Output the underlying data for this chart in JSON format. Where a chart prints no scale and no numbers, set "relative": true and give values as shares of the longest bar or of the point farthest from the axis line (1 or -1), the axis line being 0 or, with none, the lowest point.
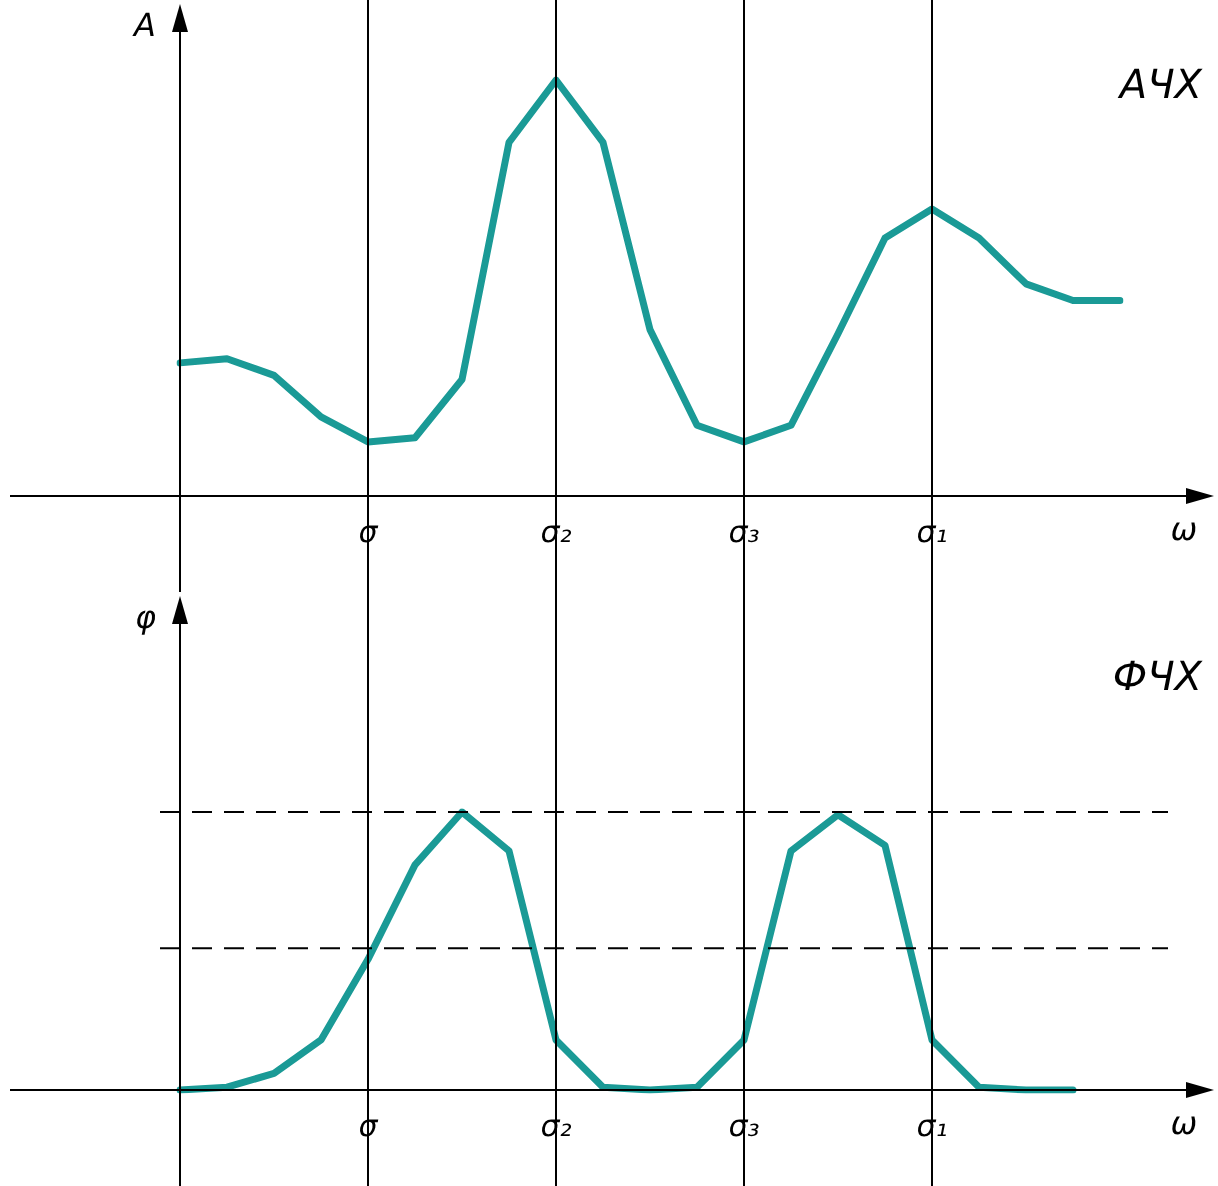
{
  "chart_data": [
    {
      "type": "line",
      "title": "АЧХ",
      "ylabel": "А",
      "xlabel": "ω",
      "relative": true,
      "grid": "x",
      "legend": false,
      "marker": "none",
      "line_style": "solid",
      "categories": [
        null,
        null,
        null,
        null,
        "σ",
        null,
        null,
        null,
        "σ₂",
        null,
        null,
        null,
        "σ₃",
        null,
        null,
        null,
        "σ₁",
        null,
        null,
        null,
        null
      ],
      "series": [
        {
          "color": "#1a9a96",
          "values": [
            0.32,
            0.33,
            0.29,
            0.19,
            0.13,
            0.14,
            0.28,
            0.85,
            1,
            0.85,
            0.4,
            0.17,
            0.13,
            0.17,
            0.39,
            0.62,
            0.69,
            0.62,
            0.51,
            0.47,
            0.47
          ]
        }
      ]
    },
    {
      "type": "line",
      "title": "ФЧХ",
      "ylabel": "φ",
      "xlabel": "ω",
      "relative": true,
      "grid": "x",
      "legend": false,
      "marker": "none",
      "line_style": "solid",
      "categories": [
        null,
        null,
        null,
        null,
        "σ",
        null,
        null,
        null,
        "σ₂",
        null,
        null,
        null,
        "σ₃",
        null,
        null,
        null,
        "σ₁",
        null,
        null,
        null,
        null
      ],
      "series": [
        {
          "color": "#1a9a96",
          "values": [
            0,
            0.01,
            0.06,
            0.18,
            0.47,
            0.81,
            1,
            0.86,
            0.18,
            0.01,
            0,
            0.01,
            0.18,
            0.86,
            0.99,
            0.88,
            0.18,
            0.01,
            0,
            0,
            null
          ]
        }
      ],
      "ref_lines": [
        {
          "axis": "y",
          "value": 1,
          "line_style": "dashed"
        },
        {
          "axis": "y",
          "value": 0.51,
          "line_style": "dashed"
        }
      ]
    }
  ]
}
